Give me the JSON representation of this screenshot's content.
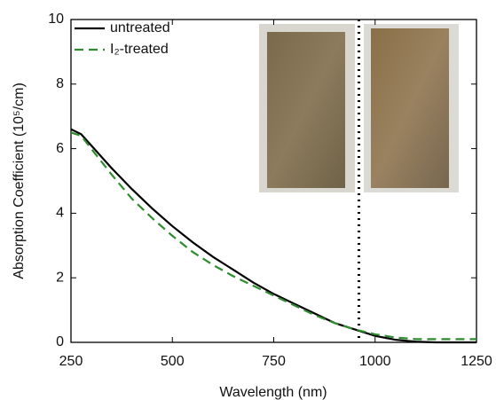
{
  "chart_data": {
    "type": "line",
    "xlabel": "Wavelength (nm)",
    "ylabel": "Absorption Coefficient (10⁵/cm)",
    "x": [
      250,
      275,
      300,
      350,
      400,
      450,
      500,
      550,
      600,
      650,
      700,
      750,
      800,
      850,
      900,
      950,
      1000,
      1050,
      1100,
      1150,
      1200,
      1250
    ],
    "series": [
      {
        "name": "untreated",
        "color": "#000000",
        "dash": "solid",
        "values": [
          6.6,
          6.45,
          6.1,
          5.4,
          4.75,
          4.15,
          3.6,
          3.1,
          2.65,
          2.25,
          1.85,
          1.5,
          1.2,
          0.9,
          0.6,
          0.4,
          0.2,
          0.08,
          0.02,
          0,
          0,
          0
        ]
      },
      {
        "name": "I₂-treated",
        "color": "#2e8b2e",
        "dash": "dashed",
        "values": [
          6.5,
          6.4,
          6.0,
          5.2,
          4.45,
          3.85,
          3.3,
          2.8,
          2.4,
          2.05,
          1.75,
          1.45,
          1.15,
          0.85,
          0.6,
          0.4,
          0.25,
          0.15,
          0.1,
          0.1,
          0.1,
          0.1
        ]
      }
    ],
    "reference_line_x": 960,
    "xlim": [
      250,
      1250
    ],
    "xticks": [
      250,
      500,
      750,
      1000,
      1250
    ],
    "ylim": [
      0,
      10
    ],
    "yticks": [
      0,
      2,
      4,
      6,
      8,
      10
    ],
    "legend": "upper left"
  }
}
